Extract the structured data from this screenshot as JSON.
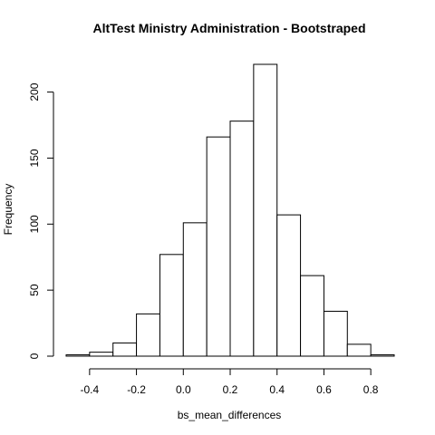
{
  "chart_data": {
    "type": "bar",
    "title": "AltTest Ministry Administration - Bootstraped",
    "xlabel": "bs_mean_differences",
    "ylabel": "Frequency",
    "bin_edges": [
      -0.5,
      -0.4,
      -0.3,
      -0.2,
      -0.1,
      0.0,
      0.1,
      0.2,
      0.3,
      0.4,
      0.5,
      0.6,
      0.7,
      0.8,
      0.9
    ],
    "values": [
      1,
      3,
      10,
      32,
      77,
      101,
      166,
      178,
      221,
      107,
      61,
      34,
      9,
      1
    ],
    "xlim": [
      -0.5,
      0.9
    ],
    "ylim": [
      0,
      221
    ],
    "x_ticks": [
      "-0.4",
      "-0.2",
      "0.0",
      "0.2",
      "0.4",
      "0.6",
      "0.8"
    ],
    "x_tick_values": [
      -0.4,
      -0.2,
      0.0,
      0.2,
      0.4,
      0.6,
      0.8
    ],
    "y_ticks": [
      "0",
      "50",
      "100",
      "150",
      "200"
    ],
    "y_tick_values": [
      0,
      50,
      100,
      150,
      200
    ],
    "grid": false,
    "colors": {
      "bar_fill": "#ffffff",
      "bar_stroke": "#000000"
    }
  }
}
